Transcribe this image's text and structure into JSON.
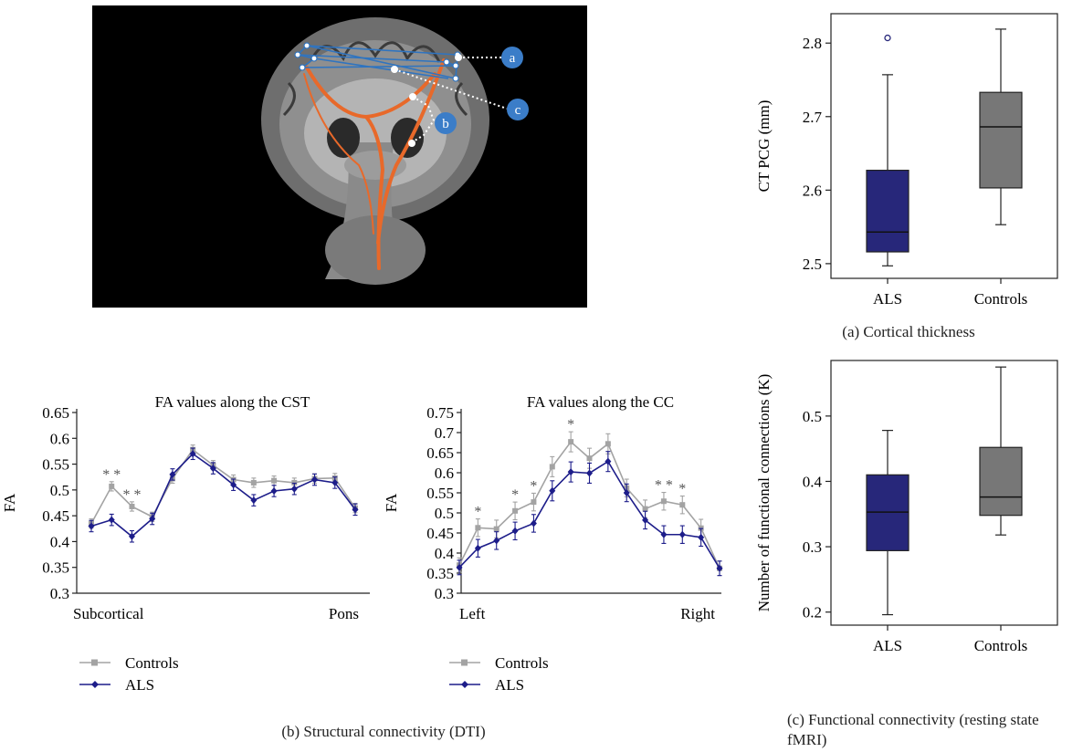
{
  "mri_figure": {
    "callouts": [
      "a",
      "c",
      "b"
    ],
    "colors": {
      "background": "#000000",
      "tract": "#e8692a",
      "network": "#2f74c0",
      "callout": "#3b7dc8"
    }
  },
  "captions": {
    "a": "(a) Cortical thickness",
    "b": "(b) Structural connectivity (DTI)",
    "c": "(c) Functional connectivity (resting state fMRI)"
  },
  "colors": {
    "ALS": "#27277a",
    "Controls": "#777777",
    "controls_line": "#a3a3a3",
    "ALS_line": "#1d1d8a"
  },
  "chart_data": [
    {
      "id": "cortical-thickness",
      "type": "box",
      "ylabel": "CT PCG (mm)",
      "ylim": [
        2.48,
        2.84
      ],
      "yticks": [
        2.5,
        2.6,
        2.7,
        2.8
      ],
      "categories": [
        "ALS",
        "Controls"
      ],
      "boxes": [
        {
          "name": "ALS",
          "whisker_low": 2.497,
          "q1": 2.516,
          "median": 2.543,
          "q3": 2.627,
          "whisker_high": 2.757,
          "outliers": [
            2.807
          ]
        },
        {
          "name": "Controls",
          "whisker_low": 2.553,
          "q1": 2.603,
          "median": 2.686,
          "q3": 2.733,
          "whisker_high": 2.819,
          "outliers": []
        }
      ]
    },
    {
      "id": "fa-cst",
      "type": "line",
      "title": "FA values along the CST",
      "ylabel": "FA",
      "ylim": [
        0.3,
        0.65
      ],
      "yticks": [
        0.3,
        0.35,
        0.4,
        0.45,
        0.5,
        0.55,
        0.6,
        0.65
      ],
      "xlabels": [
        "Subcortical",
        "Pons"
      ],
      "series": [
        {
          "name": "Controls",
          "values": [
            0.435,
            0.507,
            0.468,
            0.448,
            0.522,
            0.578,
            0.548,
            0.52,
            0.514,
            0.518,
            0.514,
            0.522,
            0.523,
            0.465
          ],
          "errors": [
            0.009,
            0.009,
            0.009,
            0.009,
            0.009,
            0.009,
            0.009,
            0.009,
            0.009,
            0.009,
            0.009,
            0.009,
            0.009,
            0.009
          ]
        },
        {
          "name": "ALS",
          "values": [
            0.43,
            0.442,
            0.41,
            0.444,
            0.53,
            0.57,
            0.542,
            0.51,
            0.48,
            0.498,
            0.502,
            0.52,
            0.514,
            0.462
          ],
          "errors": [
            0.011,
            0.011,
            0.011,
            0.011,
            0.011,
            0.011,
            0.011,
            0.011,
            0.011,
            0.011,
            0.011,
            0.011,
            0.011,
            0.011
          ]
        }
      ],
      "significance": [
        {
          "index": 1,
          "text": "* *"
        },
        {
          "index": 2,
          "text": "* *"
        }
      ]
    },
    {
      "id": "fa-cc",
      "type": "line",
      "title": "FA values along the CC",
      "ylabel": "FA",
      "ylim": [
        0.3,
        0.75
      ],
      "yticks": [
        0.3,
        0.35,
        0.4,
        0.45,
        0.5,
        0.55,
        0.6,
        0.65,
        0.7,
        0.75
      ],
      "xlabels": [
        "Left",
        "Right"
      ],
      "series": [
        {
          "name": "Controls",
          "values": [
            0.37,
            0.463,
            0.46,
            0.505,
            0.527,
            0.615,
            0.677,
            0.636,
            0.672,
            0.562,
            0.51,
            0.529,
            0.52,
            0.462,
            0.362
          ],
          "errors": [
            0.018,
            0.022,
            0.022,
            0.022,
            0.022,
            0.025,
            0.025,
            0.025,
            0.025,
            0.022,
            0.022,
            0.022,
            0.022,
            0.022,
            0.018
          ]
        },
        {
          "name": "ALS",
          "values": [
            0.364,
            0.412,
            0.431,
            0.455,
            0.474,
            0.555,
            0.602,
            0.599,
            0.628,
            0.55,
            0.482,
            0.446,
            0.446,
            0.439,
            0.362
          ],
          "errors": [
            0.018,
            0.022,
            0.022,
            0.022,
            0.022,
            0.025,
            0.025,
            0.025,
            0.025,
            0.022,
            0.022,
            0.022,
            0.022,
            0.022,
            0.018
          ]
        }
      ],
      "significance": [
        {
          "index": 1,
          "text": "*"
        },
        {
          "index": 3,
          "text": "*"
        },
        {
          "index": 4,
          "text": "*"
        },
        {
          "index": 6,
          "text": "*"
        },
        {
          "index": 11,
          "text": "* *"
        },
        {
          "index": 12,
          "text": "*"
        }
      ]
    },
    {
      "id": "functional-connectivity",
      "type": "box",
      "ylabel": "Number of functional connections (K)",
      "ylim": [
        0.18,
        0.585
      ],
      "yticks": [
        0.2,
        0.3,
        0.4,
        0.5
      ],
      "categories": [
        "ALS",
        "Controls"
      ],
      "boxes": [
        {
          "name": "ALS",
          "whisker_low": 0.196,
          "q1": 0.294,
          "median": 0.353,
          "q3": 0.41,
          "whisker_high": 0.478,
          "outliers": []
        },
        {
          "name": "Controls",
          "whisker_low": 0.318,
          "q1": 0.348,
          "median": 0.376,
          "q3": 0.452,
          "whisker_high": 0.575,
          "outliers": []
        }
      ]
    }
  ]
}
